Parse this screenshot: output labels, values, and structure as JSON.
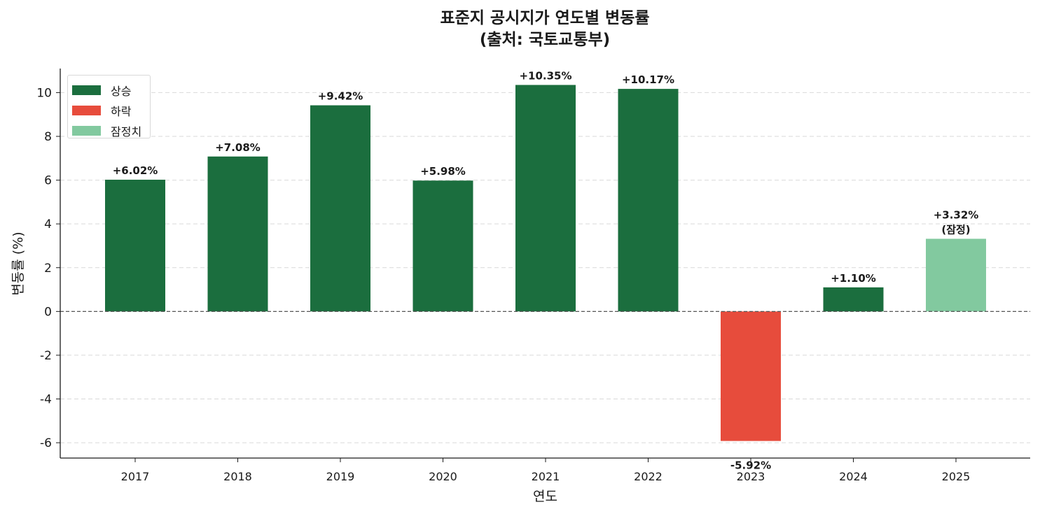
{
  "title": {
    "line1": "표준지 공시지가 연도별 변동률",
    "line2": "(출처: 국토교통부)"
  },
  "chart_data": {
    "type": "bar",
    "categories": [
      "2017",
      "2018",
      "2019",
      "2020",
      "2021",
      "2022",
      "2023",
      "2024",
      "2025"
    ],
    "values": [
      6.02,
      7.08,
      9.42,
      5.98,
      10.35,
      10.17,
      -5.92,
      1.1,
      3.32
    ],
    "status": [
      "상승",
      "상승",
      "상승",
      "상승",
      "상승",
      "상승",
      "하락",
      "상승",
      "잠정치"
    ],
    "data_labels": [
      "+6.02%",
      "+7.08%",
      "+9.42%",
      "+5.98%",
      "+10.35%",
      "+10.17%",
      "-5.92%",
      "+1.10%",
      "+3.32%\n(잠정)"
    ],
    "xlabel": "연도",
    "ylabel": "변동률 (%)",
    "ylim": [
      -6.7,
      11.1
    ],
    "yticks": [
      -6,
      -4,
      -2,
      0,
      2,
      4,
      6,
      8,
      10
    ],
    "grid": "horizontal dashed",
    "zero_line": "dashed",
    "legend_position": "top-left",
    "legend": [
      {
        "label": "상승",
        "color": "#1b6e3e"
      },
      {
        "label": "하락",
        "color": "#e74c3c"
      },
      {
        "label": "잠정치",
        "color": "#82c99f"
      }
    ]
  }
}
